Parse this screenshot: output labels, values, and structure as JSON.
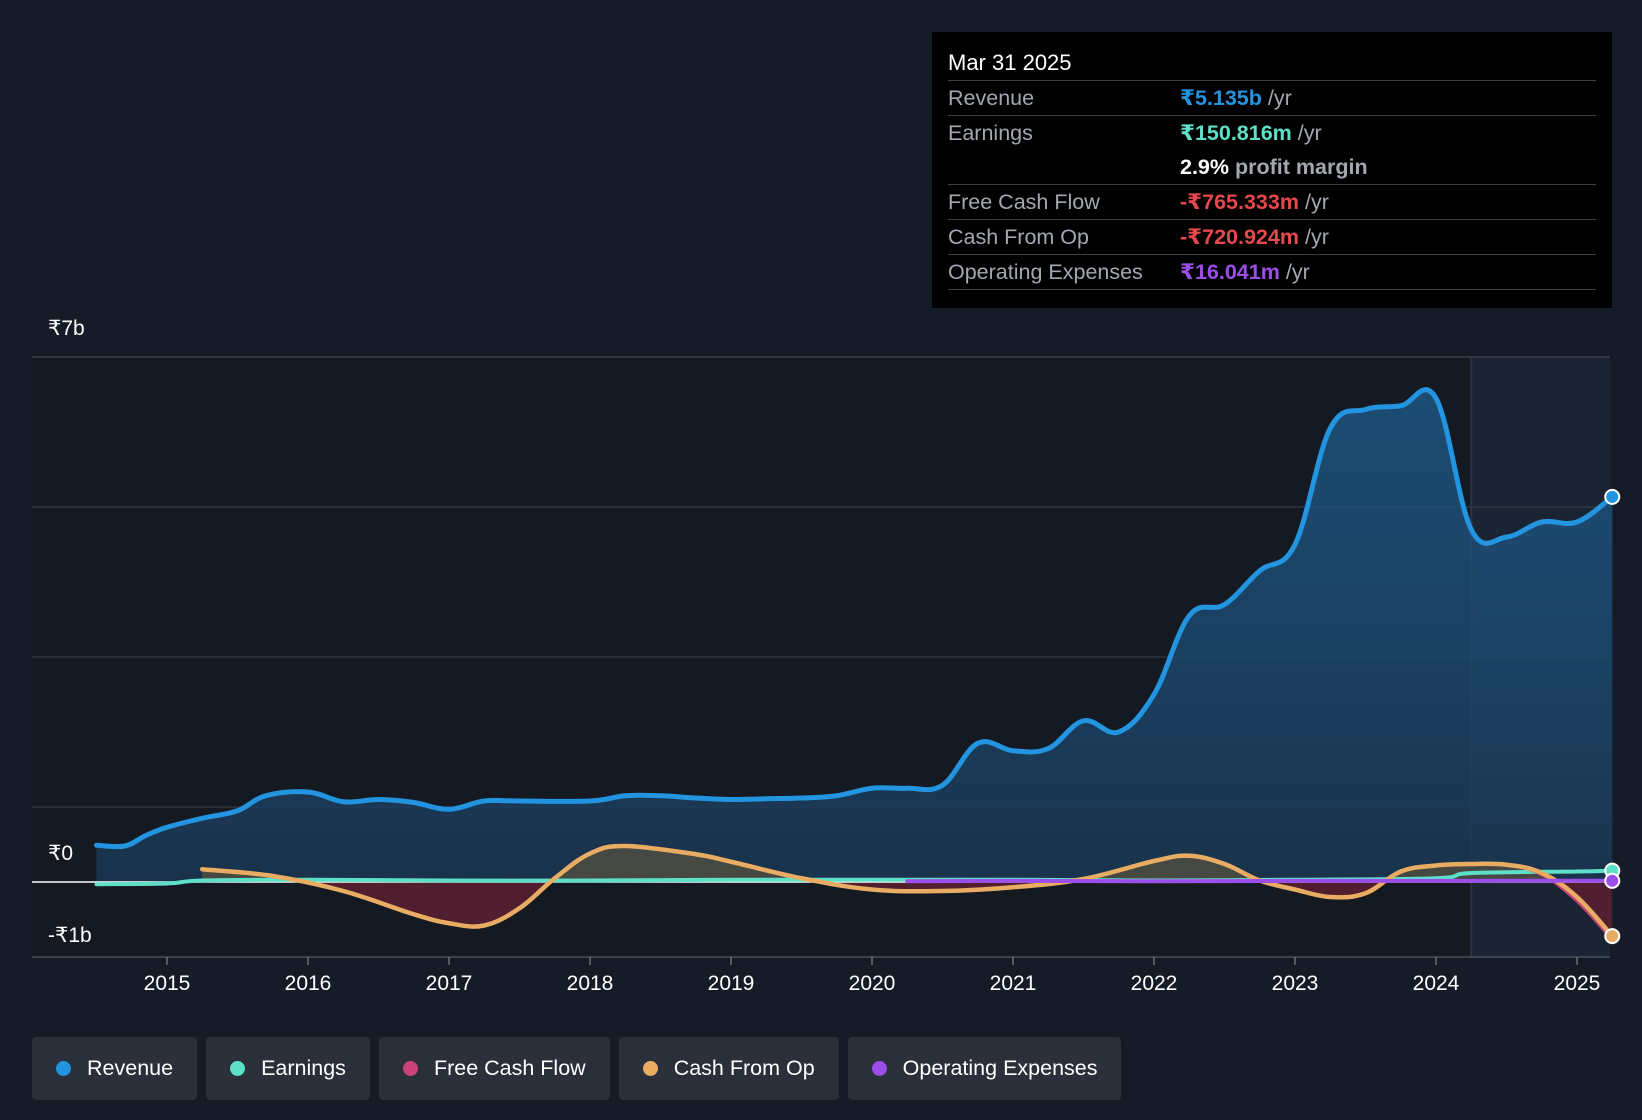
{
  "tooltip": {
    "date": "Mar 31 2025",
    "rows": {
      "revenue": {
        "label": "Revenue",
        "value": "₹5.135b",
        "unit": "/yr"
      },
      "earnings": {
        "label": "Earnings",
        "value": "₹150.816m",
        "unit": "/yr"
      },
      "margin": {
        "value": "2.9%",
        "text": "profit margin"
      },
      "fcf": {
        "label": "Free Cash Flow",
        "value": "-₹765.333m",
        "unit": "/yr"
      },
      "cfo": {
        "label": "Cash From Op",
        "value": "-₹720.924m",
        "unit": "/yr"
      },
      "opex": {
        "label": "Operating Expenses",
        "value": "₹16.041m",
        "unit": "/yr"
      }
    }
  },
  "colors": {
    "background": "#161c27",
    "revenue": "#2394df",
    "earnings": "#5ee0c8",
    "fcf": "#c9427a",
    "cfo": "#e8ad63",
    "opex": "#9c4ee8",
    "negative": "#e5484d"
  },
  "legend": {
    "revenue": "Revenue",
    "earnings": "Earnings",
    "fcf": "Free Cash Flow",
    "cfo": "Cash From Op",
    "opex": "Operating Expenses"
  },
  "chart_data": {
    "type": "area",
    "title": "",
    "xlabel": "",
    "ylabel": "",
    "y_unit": "₹ billions",
    "ylim": [
      -1,
      7
    ],
    "y_tick_labels": [
      "₹7b",
      "₹0",
      "-₹1b"
    ],
    "x_tick_labels": [
      "2015",
      "2016",
      "2017",
      "2018",
      "2019",
      "2020",
      "2021",
      "2022",
      "2023",
      "2024",
      "2025"
    ],
    "xlim": [
      2014.25,
      2025.25
    ],
    "forecast_start": 2024.25,
    "series": [
      {
        "name": "Revenue",
        "x": [
          2014.5,
          2014.7,
          2014.85,
          2015.0,
          2015.25,
          2015.5,
          2015.7,
          2016.0,
          2016.25,
          2016.5,
          2016.75,
          2017.0,
          2017.25,
          2017.5,
          2018.0,
          2018.25,
          2018.5,
          2018.75,
          2019.0,
          2019.25,
          2019.5,
          2019.75,
          2020.0,
          2020.25,
          2020.5,
          2020.75,
          2021.0,
          2021.25,
          2021.5,
          2021.75,
          2022.0,
          2022.25,
          2022.5,
          2022.75,
          2023.0,
          2023.25,
          2023.5,
          2023.75,
          2024.0,
          2024.25,
          2024.5,
          2024.75,
          2025.0,
          2025.25
        ],
        "values": [
          0.49,
          0.48,
          0.62,
          0.73,
          0.85,
          0.95,
          1.15,
          1.2,
          1.07,
          1.1,
          1.06,
          0.97,
          1.08,
          1.08,
          1.08,
          1.15,
          1.15,
          1.12,
          1.1,
          1.11,
          1.12,
          1.15,
          1.25,
          1.25,
          1.29,
          1.85,
          1.75,
          1.78,
          2.15,
          2.0,
          2.5,
          3.55,
          3.7,
          4.15,
          4.5,
          6.05,
          6.3,
          6.35,
          6.45,
          4.7,
          4.6,
          4.8,
          4.8,
          5.135
        ]
      },
      {
        "name": "Earnings",
        "x": [
          2014.5,
          2015.0,
          2015.25,
          2016.0,
          2017.0,
          2018.0,
          2019.0,
          2020.0,
          2021.0,
          2022.0,
          2023.0,
          2024.0,
          2024.25,
          2025.0,
          2025.25
        ],
        "values": [
          -0.03,
          -0.02,
          0.02,
          0.03,
          0.02,
          0.02,
          0.03,
          0.03,
          0.03,
          0.02,
          0.03,
          0.05,
          0.12,
          0.14,
          0.151
        ]
      },
      {
        "name": "Free Cash Flow",
        "x": [
          2015.25,
          2015.75,
          2016.25,
          2016.75,
          2017.0,
          2017.25,
          2017.5,
          2017.75,
          2018.0,
          2018.25,
          2018.75,
          2019.0,
          2019.5,
          2020.0,
          2020.5,
          2021.0,
          2021.5,
          2022.0,
          2022.25,
          2022.5,
          2022.75,
          2023.0,
          2023.25,
          2023.5,
          2023.75,
          2024.0,
          2024.25,
          2024.5,
          2024.75,
          2025.0,
          2025.25
        ],
        "values": [
          0.17,
          0.08,
          -0.12,
          -0.43,
          -0.55,
          -0.58,
          -0.35,
          0.05,
          0.38,
          0.48,
          0.37,
          0.27,
          0.05,
          -0.1,
          -0.12,
          -0.07,
          0.04,
          0.28,
          0.35,
          0.24,
          0.02,
          -0.1,
          -0.2,
          -0.15,
          0.14,
          0.22,
          0.24,
          0.23,
          0.1,
          -0.25,
          -0.765
        ]
      },
      {
        "name": "Cash From Op",
        "x": [
          2015.25,
          2015.75,
          2016.25,
          2016.75,
          2017.0,
          2017.25,
          2017.5,
          2017.75,
          2018.0,
          2018.25,
          2018.75,
          2019.0,
          2019.5,
          2020.0,
          2020.5,
          2021.0,
          2021.5,
          2022.0,
          2022.25,
          2022.5,
          2022.75,
          2023.0,
          2023.25,
          2023.5,
          2023.75,
          2024.0,
          2024.25,
          2024.5,
          2024.75,
          2025.0,
          2025.25
        ],
        "values": [
          0.17,
          0.08,
          -0.12,
          -0.43,
          -0.55,
          -0.58,
          -0.35,
          0.05,
          0.38,
          0.48,
          0.37,
          0.27,
          0.05,
          -0.1,
          -0.12,
          -0.07,
          0.04,
          0.28,
          0.35,
          0.24,
          0.02,
          -0.1,
          -0.2,
          -0.15,
          0.14,
          0.22,
          0.24,
          0.23,
          0.12,
          -0.2,
          -0.721
        ]
      },
      {
        "name": "Operating Expenses",
        "x": [
          2020.25,
          2021.0,
          2022.0,
          2023.0,
          2024.0,
          2024.5,
          2025.0,
          2025.25
        ],
        "values": [
          0.01,
          0.015,
          0.01,
          0.015,
          0.015,
          0.016,
          0.016,
          0.016
        ]
      }
    ]
  }
}
